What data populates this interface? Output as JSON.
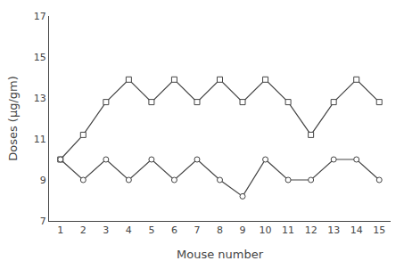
{
  "chart_data": {
    "type": "line",
    "xlabel": "Mouse number",
    "ylabel": "Doses (μg/gm)",
    "x": [
      1,
      2,
      3,
      4,
      5,
      6,
      7,
      8,
      9,
      10,
      11,
      12,
      13,
      14,
      15
    ],
    "series": [
      {
        "color": "#444444",
        "marker": "square",
        "values": [
          10.0,
          11.2,
          12.8,
          13.9,
          12.8,
          13.9,
          12.8,
          13.9,
          12.8,
          13.9,
          12.8,
          11.2,
          12.8,
          13.9,
          12.8
        ]
      },
      {
        "color": "#444444",
        "marker": "circle",
        "values": [
          10.0,
          9.0,
          10.0,
          9.0,
          10.0,
          9.0,
          10.0,
          9.0,
          8.2,
          10.0,
          9.0,
          9.0,
          10.0,
          10.0,
          9.0
        ]
      }
    ],
    "xlim": [
      0.5,
      15.5
    ],
    "ylim": [
      7,
      17
    ],
    "xticks": [
      1,
      2,
      3,
      4,
      5,
      6,
      7,
      8,
      9,
      10,
      11,
      12,
      13,
      14,
      15
    ],
    "yticks": [
      7,
      9,
      11,
      13,
      15,
      17
    ],
    "grid": false
  }
}
